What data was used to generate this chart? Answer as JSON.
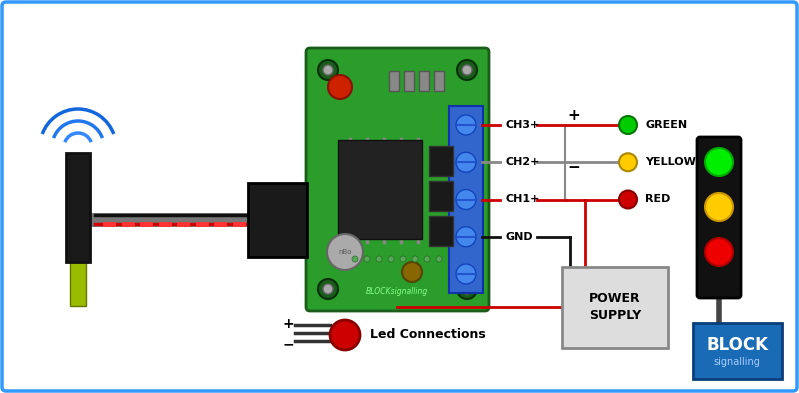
{
  "bg_color": "#ffffff",
  "border_color": "#3399ff",
  "border_lw": 2.5,
  "fig_width": 7.99,
  "fig_height": 3.93,
  "board_color": "#1e8c1e",
  "power_supply_text": "POWER\nSUPPLY",
  "block_logo_color": "#1a6bb5",
  "label_ch3": "CH3+",
  "label_ch2": "CH2+",
  "label_ch1": "CH1+",
  "label_gnd": "GND",
  "label_green": "GREEN",
  "label_yellow": "YELLOW",
  "label_red": "RED",
  "label_led": "Led Connections",
  "wire_red": "#cc0000",
  "wire_black": "#111111",
  "wire_gray": "#888888"
}
